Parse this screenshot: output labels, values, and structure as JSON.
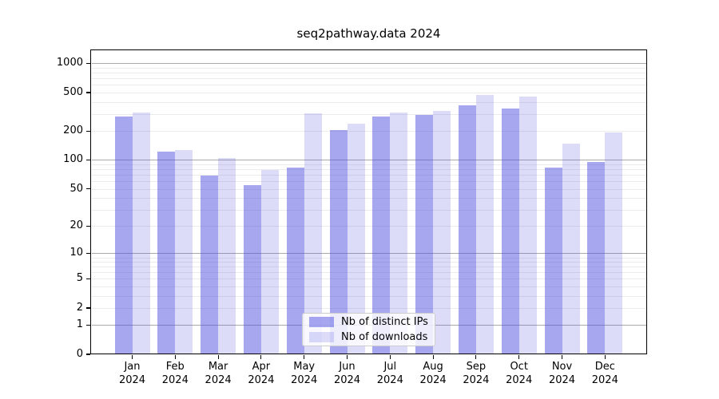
{
  "chart_data": {
    "type": "bar",
    "title": "seq2pathway.data 2024",
    "categories": [
      "Jan 2024",
      "Feb 2024",
      "Mar 2024",
      "Apr 2024",
      "May 2024",
      "Jun 2024",
      "Jul 2024",
      "Aug 2024",
      "Sep 2024",
      "Oct 2024",
      "Nov 2024",
      "Dec 2024"
    ],
    "series": [
      {
        "name": "Nb of distinct IPs",
        "color": "#5050e1",
        "alpha": 0.5,
        "values": [
          284,
          122,
          69,
          55,
          83,
          206,
          281,
          291,
          372,
          340,
          84,
          96
        ]
      },
      {
        "name": "Nb of downloads",
        "color": "#5050e1",
        "alpha": 0.2,
        "values": [
          311,
          128,
          104,
          78,
          303,
          238,
          312,
          325,
          473,
          452,
          149,
          192
        ]
      }
    ],
    "yscale": "log1p",
    "yticks": [
      0,
      1,
      2,
      5,
      10,
      20,
      50,
      100,
      200,
      500,
      1000
    ],
    "ylim": [
      0,
      1400
    ],
    "xlabel": "",
    "ylabel": "",
    "grid": {
      "orientation": "horizontal",
      "major_color": "#a9a9a9",
      "minor_color": "#ebebeb",
      "major_at": [
        1,
        10,
        100,
        1000
      ]
    },
    "legend_position": "bottom-center",
    "background_color": "#ffffff",
    "axis_color": "#000000"
  }
}
